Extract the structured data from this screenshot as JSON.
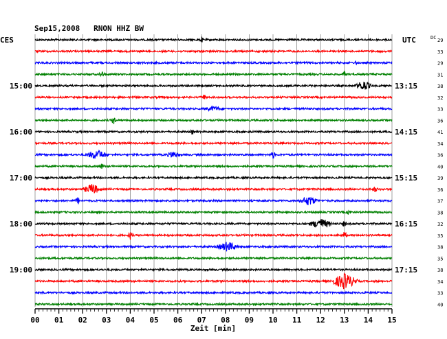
{
  "chart_data": {
    "type": "line",
    "title": "Sep15,2008   RNON HHZ BW",
    "left_timezone": "CES",
    "right_timezone": "UTC",
    "dc_label": "DC",
    "xlabel": "Zeit [min]",
    "xlim": [
      0,
      15
    ],
    "x_ticks": [
      "00",
      "01",
      "02",
      "03",
      "04",
      "05",
      "06",
      "07",
      "08",
      "09",
      "10",
      "11",
      "12",
      "13",
      "14",
      "15"
    ],
    "grid": true,
    "trace_colors": [
      "#000000",
      "#ff0000",
      "#0000ff",
      "#008000"
    ],
    "left_hour_labels": [
      {
        "row": 4,
        "label": "15:00"
      },
      {
        "row": 8,
        "label": "16:00"
      },
      {
        "row": 12,
        "label": "17:00"
      },
      {
        "row": 16,
        "label": "18:00"
      },
      {
        "row": 20,
        "label": "19:00"
      }
    ],
    "right_hour_labels": [
      {
        "row": 4,
        "label": "13:15"
      },
      {
        "row": 8,
        "label": "14:15"
      },
      {
        "row": 12,
        "label": "15:15"
      },
      {
        "row": 16,
        "label": "16:15"
      },
      {
        "row": 20,
        "label": "17:15"
      }
    ],
    "dc_values": [
      "29",
      "33",
      "29",
      "31",
      "38",
      "32",
      "33",
      "36",
      "41",
      "34",
      "36",
      "40",
      "39",
      "36",
      "37",
      "38",
      "32",
      "35",
      "38",
      "35",
      "38",
      "34",
      "33",
      "40"
    ],
    "events": [
      {
        "row": 0,
        "minute": 7.0,
        "amplitude": 0.6,
        "duration": 0.05
      },
      {
        "row": 2,
        "minute": 13.5,
        "amplitude": 0.5,
        "duration": 0.05
      },
      {
        "row": 3,
        "minute": 2.8,
        "amplitude": 0.6,
        "duration": 0.1
      },
      {
        "row": 3,
        "minute": 13.0,
        "amplitude": 0.6,
        "duration": 0.08
      },
      {
        "row": 4,
        "minute": 13.8,
        "amplitude": 1.0,
        "duration": 0.35
      },
      {
        "row": 5,
        "minute": 7.1,
        "amplitude": 0.5,
        "duration": 0.1
      },
      {
        "row": 6,
        "minute": 7.5,
        "amplitude": 0.4,
        "duration": 0.4
      },
      {
        "row": 7,
        "minute": 3.3,
        "amplitude": 0.7,
        "duration": 0.1
      },
      {
        "row": 8,
        "minute": 6.6,
        "amplitude": 0.5,
        "duration": 0.05
      },
      {
        "row": 10,
        "minute": 2.6,
        "amplitude": 0.9,
        "duration": 0.5
      },
      {
        "row": 10,
        "minute": 5.8,
        "amplitude": 0.6,
        "duration": 0.3
      },
      {
        "row": 10,
        "minute": 10.0,
        "amplitude": 0.7,
        "duration": 0.1
      },
      {
        "row": 11,
        "minute": 2.8,
        "amplitude": 0.5,
        "duration": 0.1
      },
      {
        "row": 13,
        "minute": 2.4,
        "amplitude": 1.0,
        "duration": 0.4
      },
      {
        "row": 13,
        "minute": 14.3,
        "amplitude": 0.5,
        "duration": 0.1
      },
      {
        "row": 14,
        "minute": 1.8,
        "amplitude": 0.7,
        "duration": 0.1
      },
      {
        "row": 14,
        "minute": 11.5,
        "amplitude": 0.9,
        "duration": 0.4
      },
      {
        "row": 15,
        "minute": 13.2,
        "amplitude": 0.5,
        "duration": 0.1
      },
      {
        "row": 16,
        "minute": 12.0,
        "amplitude": 1.0,
        "duration": 0.5
      },
      {
        "row": 16,
        "minute": 13.0,
        "amplitude": 0.5,
        "duration": 0.1
      },
      {
        "row": 17,
        "minute": 4.0,
        "amplitude": 0.8,
        "duration": 0.1
      },
      {
        "row": 17,
        "minute": 13.0,
        "amplitude": 0.6,
        "duration": 0.1
      },
      {
        "row": 18,
        "minute": 8.1,
        "amplitude": 0.9,
        "duration": 0.5
      },
      {
        "row": 21,
        "minute": 13.0,
        "amplitude": 1.6,
        "duration": 0.6
      }
    ]
  }
}
